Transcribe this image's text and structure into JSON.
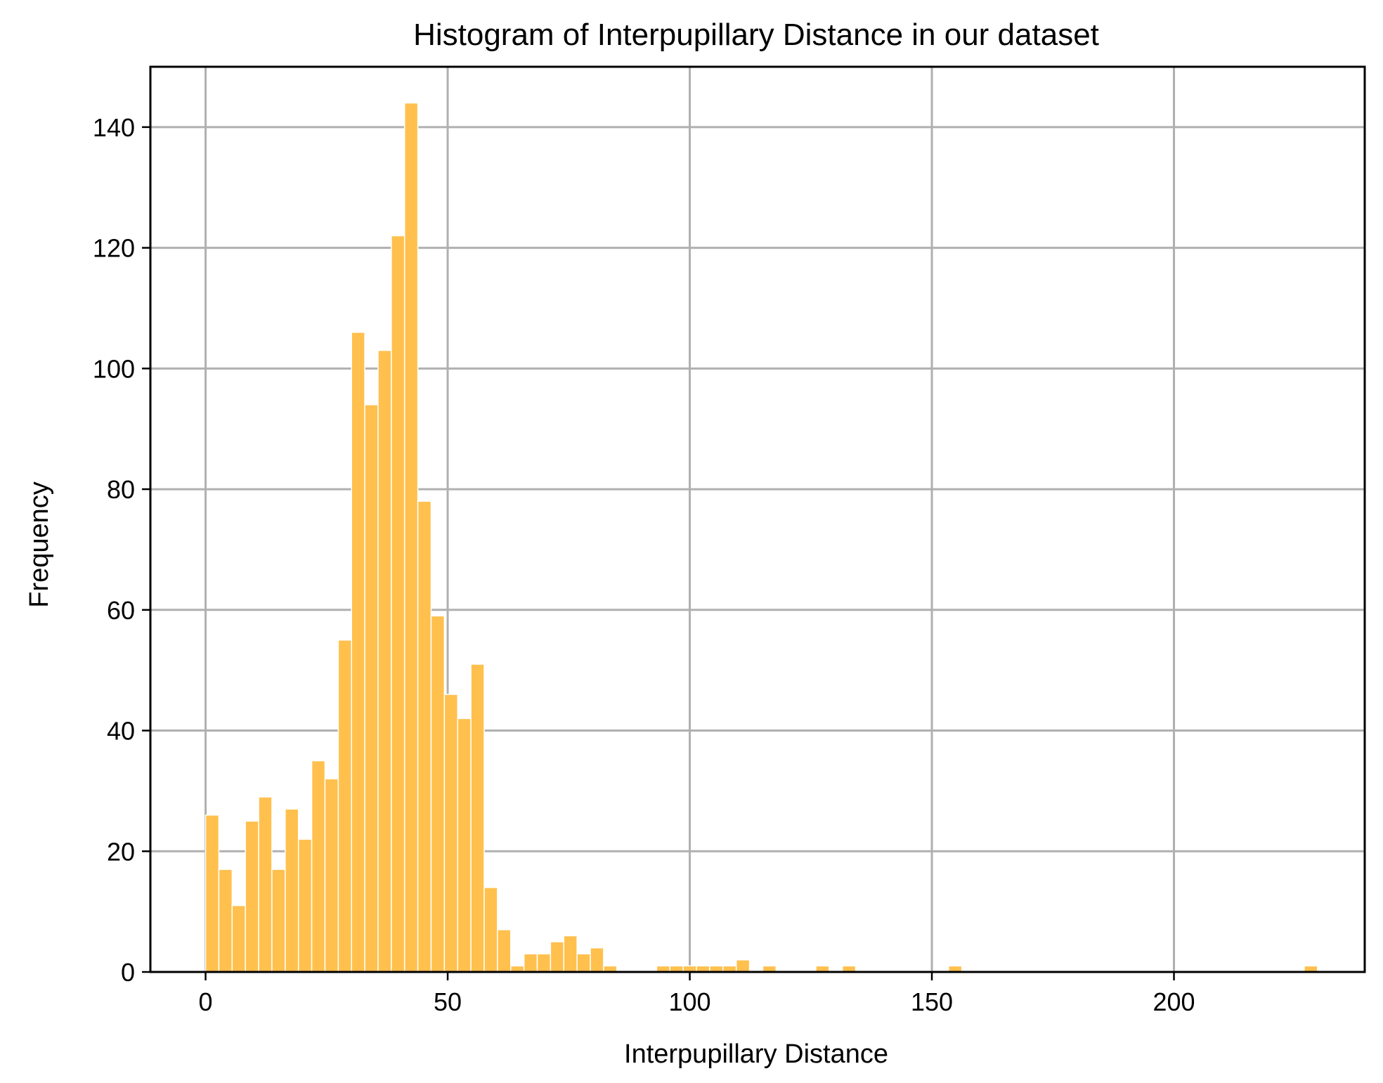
{
  "chart_data": {
    "type": "bar",
    "title": "Histogram of Interpupillary Distance in our dataset",
    "xlabel": "Interpupillary Distance",
    "ylabel": "Frequency",
    "xlim": [
      -11.4,
      239.4
    ],
    "ylim": [
      0,
      150
    ],
    "xticks": [
      0,
      50,
      100,
      150,
      200
    ],
    "yticks": [
      0,
      20,
      40,
      60,
      80,
      100,
      120,
      140
    ],
    "grid": true,
    "bar_color": "#ffc04d",
    "bin_width": 2.74,
    "series": [
      {
        "bin_starts": [
          0,
          2.74,
          5.48,
          8.22,
          10.96,
          13.7,
          16.44,
          19.18,
          21.92,
          24.66,
          27.4,
          30.14,
          32.88,
          35.62,
          38.36,
          41.1,
          43.84,
          46.58,
          49.32,
          52.06,
          54.8,
          57.54,
          60.28,
          63.02,
          65.76,
          68.5,
          71.24,
          73.98,
          76.72,
          79.46,
          82.2,
          93.16,
          95.9,
          98.64,
          101.38,
          104.12,
          106.86,
          109.6,
          115.08,
          126.04,
          131.52,
          153.44,
          226.9
        ],
        "values": [
          26,
          17,
          11,
          25,
          29,
          17,
          27,
          22,
          35,
          32,
          55,
          106,
          94,
          103,
          122,
          144,
          78,
          59,
          46,
          42,
          51,
          14,
          7,
          1,
          3,
          3,
          5,
          6,
          3,
          4,
          1,
          1,
          1,
          1,
          1,
          1,
          1,
          2,
          1,
          1,
          1,
          1,
          1
        ]
      }
    ]
  }
}
